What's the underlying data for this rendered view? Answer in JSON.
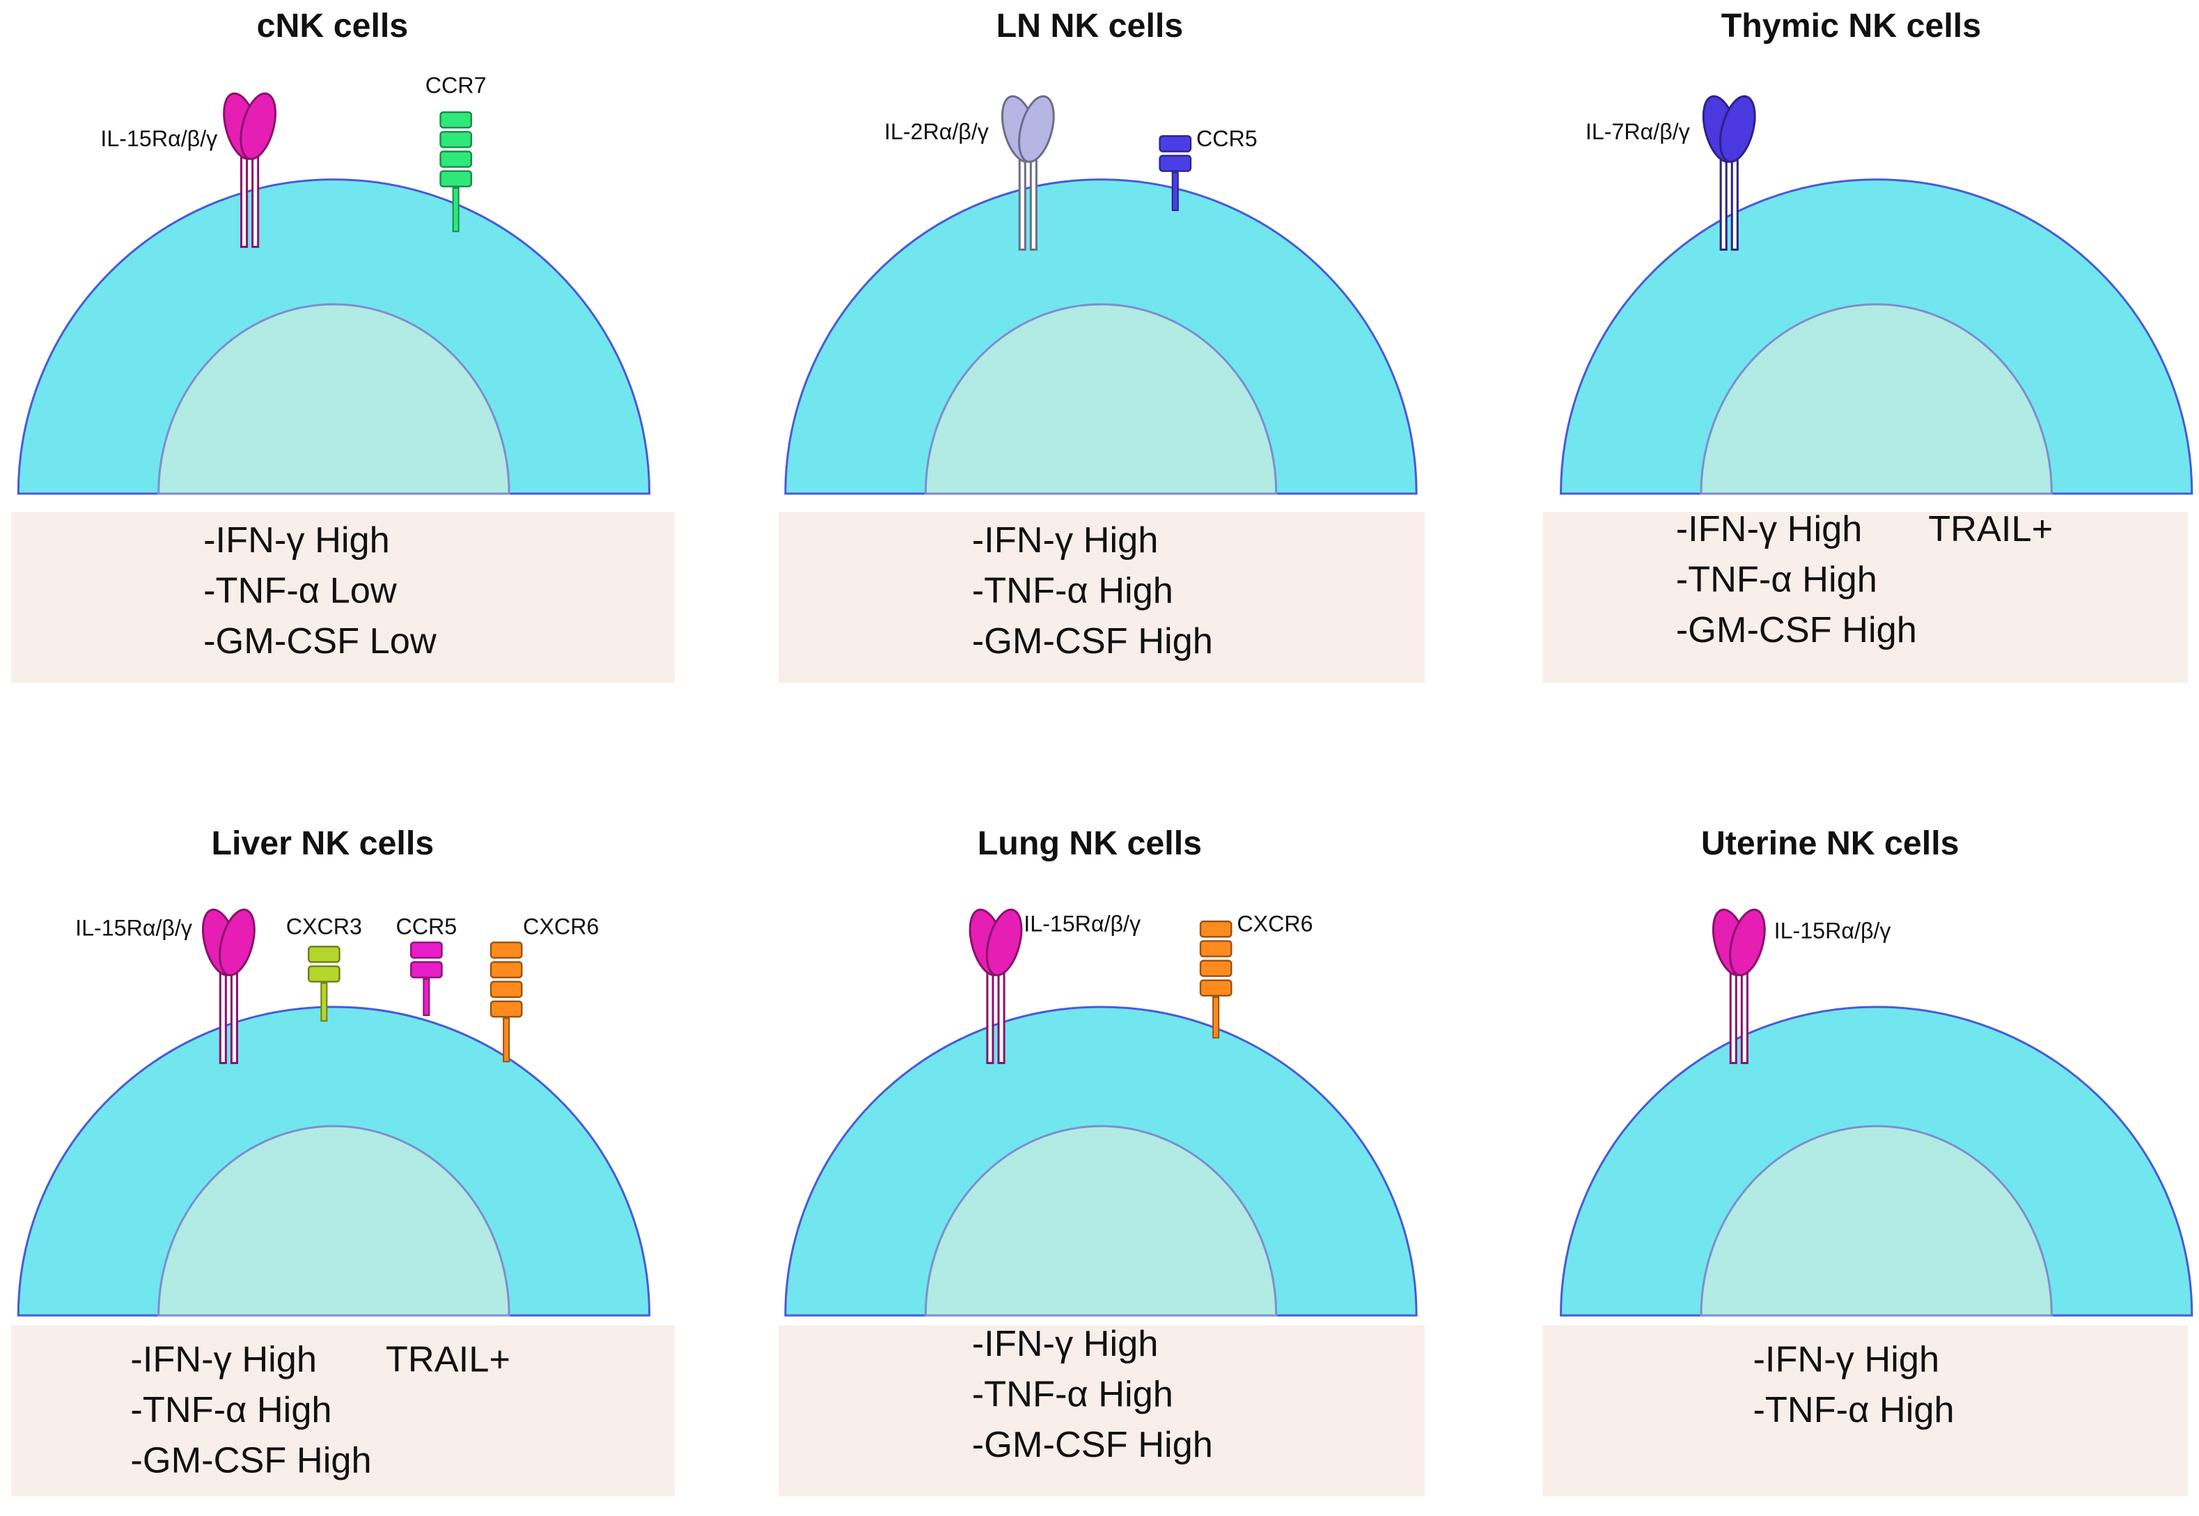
{
  "panels": [
    {
      "title": "cNK cells",
      "receptors": [
        "IL-15Rα/β/γ",
        "CCR7"
      ],
      "profile": [
        "-IFN-γ High",
        "-TNF-α Low",
        "-GM-CSF Low"
      ]
    },
    {
      "title": "LN NK cells",
      "receptors": [
        "IL-2Rα/β/γ",
        "CCR5"
      ],
      "profile": [
        "-IFN-γ High",
        "-TNF-α High",
        "-GM-CSF High"
      ]
    },
    {
      "title": "Thymic NK cells",
      "receptors": [
        "IL-7Rα/β/γ"
      ],
      "profile": [
        "-IFN-γ High",
        "-TNF-α High",
        "-GM-CSF High"
      ],
      "extra": "TRAIL+"
    },
    {
      "title": "Liver NK cells",
      "receptors": [
        "IL-15Rα/β/γ",
        "CXCR3",
        "CCR5",
        "CXCR6"
      ],
      "profile": [
        "-IFN-γ High",
        "-TNF-α High",
        "-GM-CSF High"
      ],
      "extra": "TRAIL+"
    },
    {
      "title": "Lung NK cells",
      "receptors": [
        "IL-15Rα/β/γ",
        "CXCR6"
      ],
      "profile": [
        "-IFN-γ High",
        "-TNF-α High",
        "-GM-CSF High"
      ]
    },
    {
      "title": "Uterine NK cells",
      "receptors": [
        "IL-15Rα/β/γ"
      ],
      "profile": [
        "-IFN-γ High",
        "-TNF-α High"
      ]
    }
  ]
}
